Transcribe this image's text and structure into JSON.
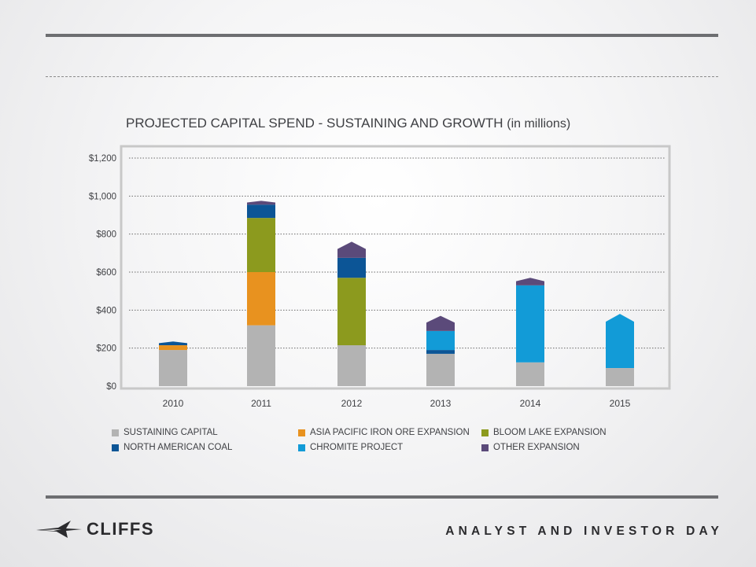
{
  "slide": {
    "footer_logo_text": "CLIFFS",
    "footer_event": "ANALYST AND INVESTOR DAY"
  },
  "chart_data": {
    "type": "bar",
    "stacked": true,
    "title": "PROJECTED CAPITAL SPEND - SUSTAINING AND GROWTH",
    "title_unit": "(in millions)",
    "xlabel": "",
    "ylabel": "",
    "categories": [
      "2010",
      "2011",
      "2012",
      "2013",
      "2014",
      "2015"
    ],
    "y_ticks": [
      "$0",
      "$200",
      "$400",
      "$600",
      "$800",
      "$1,000",
      "$1,200"
    ],
    "y_tick_values": [
      0,
      200,
      400,
      600,
      800,
      1000,
      1200
    ],
    "ylim": [
      0,
      1200
    ],
    "grid": true,
    "legend_position": "bottom",
    "series": [
      {
        "name": "SUSTAINING CAPITAL",
        "color": "#b3b3b3",
        "values": [
          190,
          320,
          215,
          170,
          125,
          95
        ]
      },
      {
        "name": "ASIA PACIFIC IRON ORE EXPANSION",
        "color": "#e8921f",
        "values": [
          25,
          280,
          0,
          0,
          0,
          0
        ]
      },
      {
        "name": "BLOOM LAKE EXPANSION",
        "color": "#8c9a1e",
        "values": [
          0,
          285,
          355,
          0,
          0,
          0
        ]
      },
      {
        "name": "NORTH AMERICAN COAL",
        "color": "#0c5596",
        "values": [
          20,
          70,
          105,
          20,
          0,
          0
        ]
      },
      {
        "name": "CHROMITE PROJECT",
        "color": "#129bd7",
        "values": [
          0,
          0,
          0,
          100,
          405,
          285
        ]
      },
      {
        "name": "OTHER EXPANSION",
        "color": "#5b4a7a",
        "values": [
          0,
          20,
          85,
          80,
          40,
          0
        ]
      }
    ]
  }
}
